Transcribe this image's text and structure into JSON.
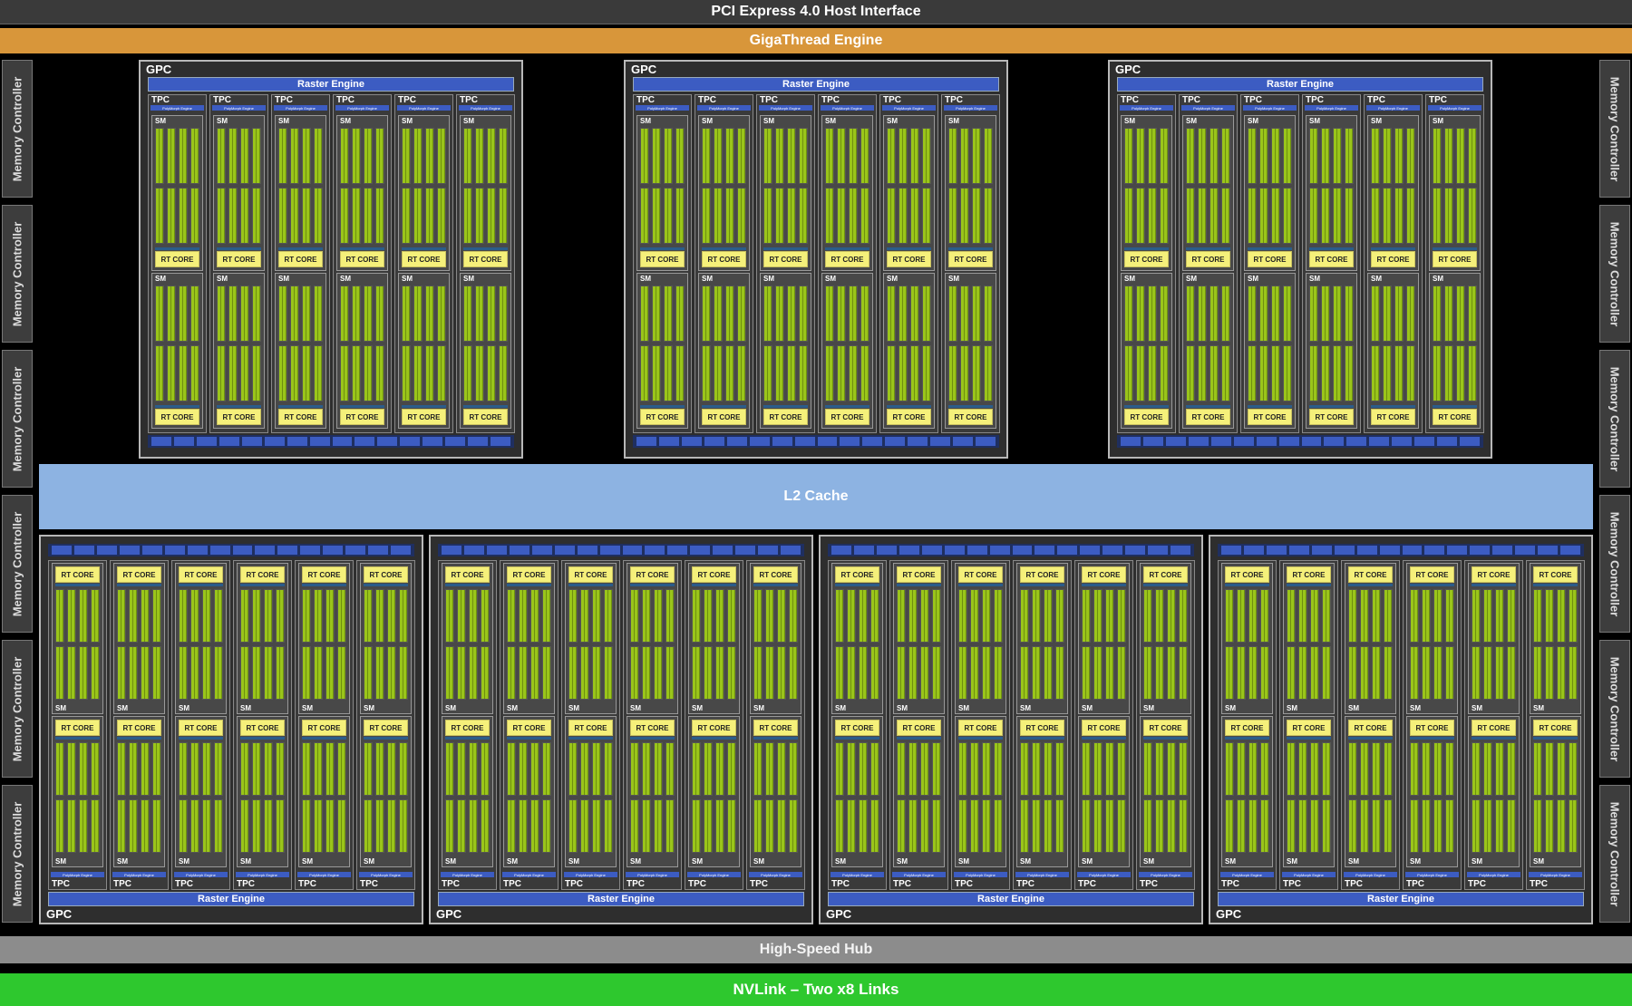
{
  "pcie": "PCI Express 4.0 Host Interface",
  "gigathread": "GigaThread Engine",
  "memory_controller": "Memory Controller",
  "l2": "L2 Cache",
  "hub": "High-Speed Hub",
  "nvlink": "NVLink – Two x8 Links",
  "gpc": "GPC",
  "raster": "Raster Engine",
  "tpc": "TPC",
  "polymorph": "PolyMorph Engine",
  "sm": "SM",
  "rt": "RT CORE",
  "colors": {
    "gigathread": "#d8963a",
    "l2": "#8db3e2",
    "nvlink": "#2ec82e",
    "rt_core": "#f5f07a",
    "cuda_core": "#9ac51a",
    "raster": "#3c5cc2"
  }
}
